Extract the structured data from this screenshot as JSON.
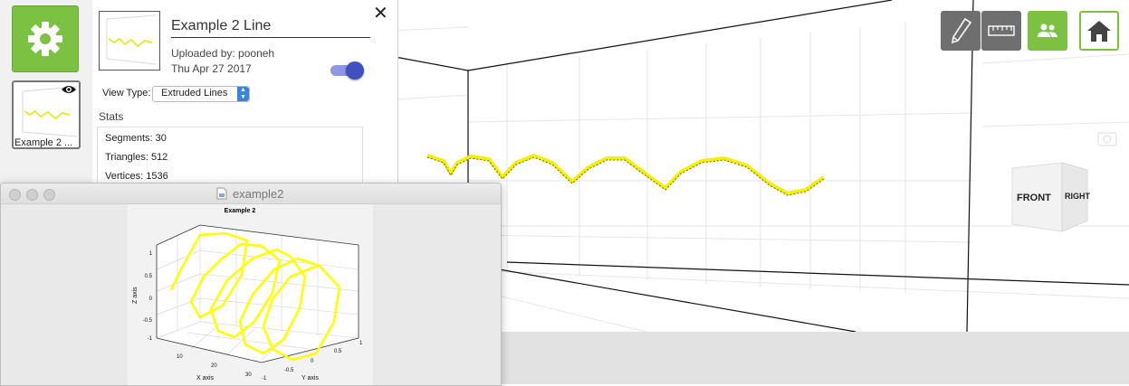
{
  "panel": {
    "title": "Example 2 Line",
    "uploaded_by": "Uploaded by: pooneh",
    "date": "Thu Apr 27 2017",
    "view_type_label": "View Type:",
    "view_type_value": "Extruded Lines",
    "stats_heading": "Stats",
    "stats": [
      "Segments: 30",
      "Triangles: 512",
      "Vertices: 1536"
    ],
    "close_glyph": "✕"
  },
  "left_rail": {
    "thumbnail_label": "Example 2 ..."
  },
  "toolbar": {
    "icons": [
      "pen-icon",
      "ruler-icon",
      "users-icon",
      "home-icon"
    ],
    "accent_color": "#7dc142",
    "dark_color": "#6f6f6f"
  },
  "view_cube": {
    "front": "FRONT",
    "right": "RIGHT"
  },
  "matlab_window": {
    "title": "example2",
    "plot": {
      "title": "Example 2",
      "xlabel": "X axis",
      "ylabel": "Y axis",
      "zlabel": "Z axis",
      "x_ticks": [
        "10",
        "20",
        "30"
      ],
      "y_ticks": [
        "-1",
        "-0.5",
        "0",
        "0.5",
        "1"
      ],
      "z_ticks": [
        "1",
        "0.5",
        "0",
        "-0.5",
        "-1"
      ]
    }
  },
  "chart_data": {
    "type": "line",
    "title": "Example 2",
    "xlabel": "X axis",
    "ylabel": "Y axis",
    "zlabel": "Z axis",
    "series": [
      {
        "color": "#ffff33",
        "points": 30
      }
    ],
    "grid": true
  },
  "line_color": "#ffff00"
}
